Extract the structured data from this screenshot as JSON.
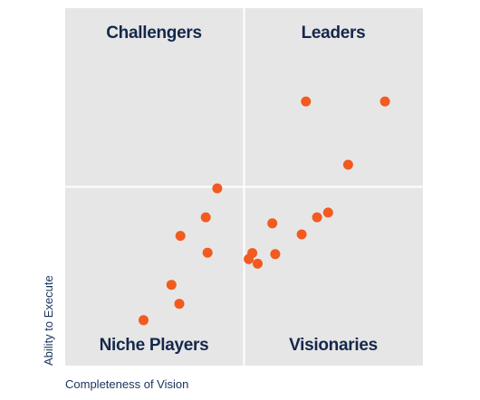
{
  "chart_data": {
    "type": "scatter",
    "title": "",
    "xlabel": "Completeness of Vision",
    "ylabel": "Ability to Execute",
    "xlim": [
      0,
      100
    ],
    "ylim": [
      0,
      100
    ],
    "grid": false,
    "quadrants": {
      "top_left": "Challengers",
      "top_right": "Leaders",
      "bottom_left": "Niche Players",
      "bottom_right": "Visionaries"
    },
    "point_color": "#f25a1f",
    "background_color": "#e6e6e6",
    "divider_color": "#ffffff",
    "series": [
      {
        "x": [
          67.3,
          89.4,
          79.1,
          70.4,
          73.5,
          66.1,
          57.9,
          58.7,
          53.8,
          52.3,
          51.3,
          42.5,
          39.3,
          32.2,
          39.8,
          29.7,
          31.9,
          21.9
        ],
        "y": [
          73.9,
          73.9,
          56.2,
          41.5,
          42.8,
          36.7,
          39.8,
          31.2,
          28.5,
          31.5,
          29.8,
          49.6,
          41.5,
          36.3,
          31.6,
          22.6,
          17.3,
          12.7
        ]
      }
    ]
  }
}
